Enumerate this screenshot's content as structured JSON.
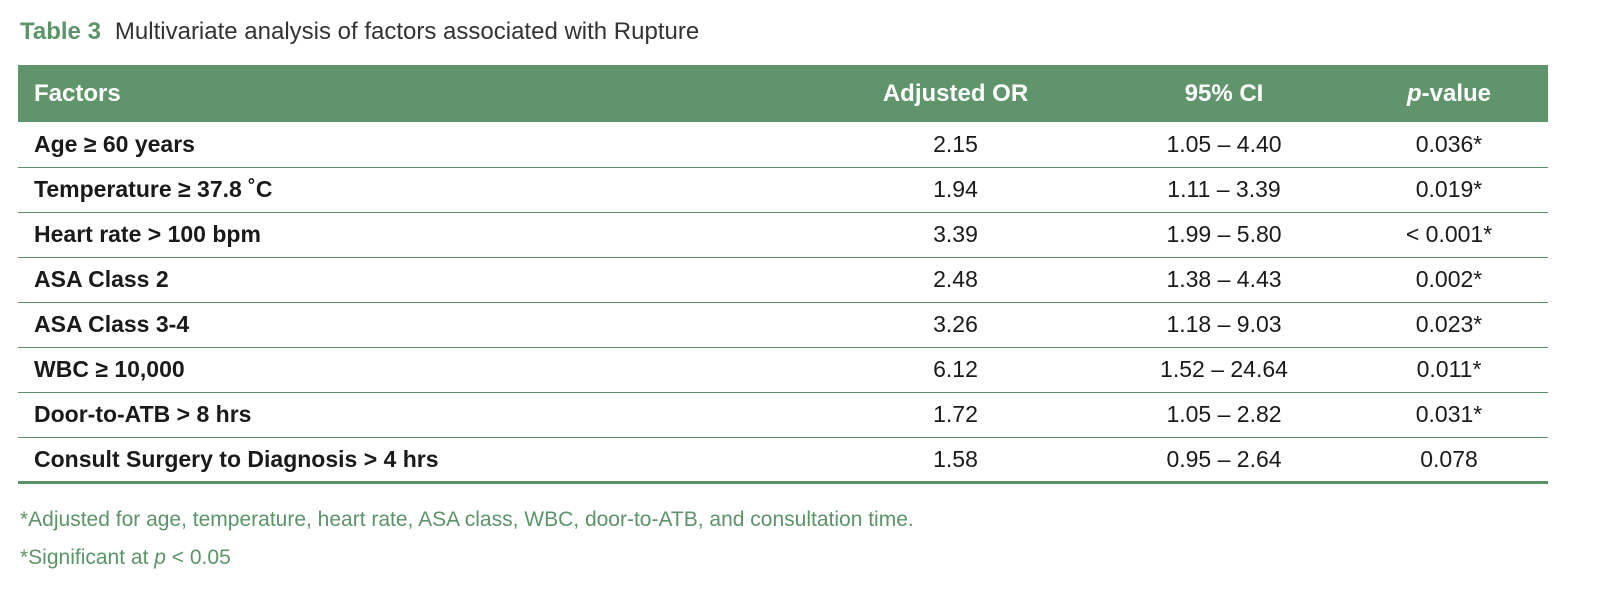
{
  "caption": {
    "label": "Table 3",
    "title": "Multivariate analysis of factors associated with Rupture"
  },
  "table": {
    "headers": {
      "factors": "Factors",
      "adjusted_or": "Adjusted OR",
      "ci": "95% CI",
      "p_prefix": "p",
      "p_suffix": "-value"
    },
    "rows": [
      {
        "factor": "Age ≥ 60 years",
        "or": "2.15",
        "ci": "1.05 – 4.40",
        "p": "0.036*"
      },
      {
        "factor": "Temperature ≥ 37.8 ˚C",
        "or": "1.94",
        "ci": "1.11 – 3.39",
        "p": "0.019*"
      },
      {
        "factor": "Heart rate > 100 bpm",
        "or": "3.39",
        "ci": "1.99 – 5.80",
        "p": "< 0.001*"
      },
      {
        "factor": "ASA Class 2",
        "or": "2.48",
        "ci": "1.38 – 4.43",
        "p": "0.002*"
      },
      {
        "factor": "ASA Class 3-4",
        "or": "3.26",
        "ci": "1.18 – 9.03",
        "p": "0.023*"
      },
      {
        "factor": "WBC ≥ 10,000",
        "or": "6.12",
        "ci": "1.52 – 24.64",
        "p": "0.011*"
      },
      {
        "factor": "Door-to-ATB > 8 hrs",
        "or": "1.72",
        "ci": "1.05 – 2.82",
        "p": "0.031*"
      },
      {
        "factor": "Consult Surgery to Diagnosis > 4 hrs",
        "or": "1.58",
        "ci": "0.95 – 2.64",
        "p": "0.078"
      }
    ]
  },
  "footnotes": {
    "adjusted": "*Adjusted for age, temperature, heart rate, ASA class, WBC, door-to-ATB, and consultation time.",
    "significant_prefix": "*Significant at ",
    "significant_p": "p",
    "significant_suffix": " < 0.05"
  },
  "colors": {
    "header_bg": "#60956b",
    "accent_text": "#5b9468",
    "rule": "#5e9068"
  }
}
